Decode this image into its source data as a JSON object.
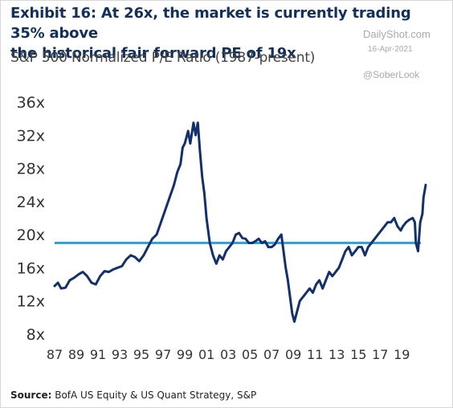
{
  "title_line1": "Exhibit 16: At 26x, the market is currently trading 35% above",
  "title_line2": "the historical fair forward PE of 19x",
  "subtitle": "S&P 500 Normalized P/E Ratio (1987-present)",
  "watermark": {
    "site": "DailyShot.com",
    "date": "16-Apr-2021",
    "handle": "@SoberLook"
  },
  "source_label": "Source:",
  "source_text": "BofA US Equity & US  Quant Strategy, S&P",
  "chart_data": {
    "type": "line",
    "title": "",
    "xlabel": "",
    "ylabel": "",
    "ylim": [
      8,
      36
    ],
    "xlim": [
      1987,
      2021.2
    ],
    "grid": false,
    "y_ticks": [
      8,
      12,
      16,
      20,
      24,
      28,
      32,
      36
    ],
    "y_tick_labels": [
      "8x",
      "12x",
      "16x",
      "20x",
      "24x",
      "28x",
      "32x",
      "36x"
    ],
    "x_ticks": [
      1987,
      1989,
      1991,
      1993,
      1995,
      1997,
      1999,
      2001,
      2003,
      2005,
      2007,
      2009,
      2011,
      2013,
      2015,
      2017,
      2019
    ],
    "x_tick_labels": [
      "87",
      "89",
      "91",
      "93",
      "95",
      "97",
      "99",
      "01",
      "03",
      "05",
      "07",
      "09",
      "11",
      "13",
      "15",
      "17",
      "19"
    ],
    "colors": {
      "pe_line": "#14306b",
      "fair_value_line": "#2aa5e0"
    },
    "reference_line": {
      "y": 19
    },
    "series": [
      {
        "x": [
          1987.0,
          1987.3,
          1987.6,
          1988.0,
          1988.4,
          1988.8,
          1989.2,
          1989.6,
          1990.0,
          1990.4,
          1990.8,
          1991.2,
          1991.6,
          1992.0,
          1992.4,
          1992.8,
          1993.2,
          1993.6,
          1994.0,
          1994.4,
          1994.8,
          1995.2,
          1995.6,
          1996.0,
          1996.4,
          1996.8,
          1997.2,
          1997.6,
          1998.0,
          1998.3,
          1998.6,
          1998.8,
          1999.0,
          1999.3,
          1999.5,
          1999.8,
          2000.0,
          2000.2,
          2000.4,
          2000.6,
          2000.8,
          2001.0,
          2001.3,
          2001.6,
          2001.9,
          2002.2,
          2002.5,
          2002.8,
          2003.1,
          2003.4,
          2003.7,
          2004.0,
          2004.3,
          2004.6,
          2004.9,
          2005.2,
          2005.5,
          2005.8,
          2006.1,
          2006.4,
          2006.7,
          2007.0,
          2007.3,
          2007.6,
          2007.9,
          2008.1,
          2008.3,
          2008.5,
          2008.7,
          2008.9,
          2009.1,
          2009.3,
          2009.6,
          2009.9,
          2010.2,
          2010.5,
          2010.8,
          2011.1,
          2011.4,
          2011.7,
          2012.0,
          2012.3,
          2012.6,
          2012.9,
          2013.2,
          2013.5,
          2013.8,
          2014.1,
          2014.4,
          2014.7,
          2015.0,
          2015.3,
          2015.6,
          2015.9,
          2016.2,
          2016.5,
          2016.8,
          2017.1,
          2017.4,
          2017.7,
          2018.0,
          2018.3,
          2018.6,
          2018.9,
          2019.1,
          2019.4,
          2019.7,
          2020.0,
          2020.2,
          2020.3,
          2020.5,
          2020.7,
          2020.9,
          2021.0,
          2021.2
        ],
        "values": [
          13.8,
          14.2,
          13.5,
          13.6,
          14.5,
          14.8,
          15.2,
          15.5,
          15.0,
          14.2,
          14.0,
          15.0,
          15.6,
          15.5,
          15.8,
          16.0,
          16.2,
          17.0,
          17.5,
          17.3,
          16.8,
          17.5,
          18.5,
          19.5,
          20.0,
          21.5,
          23.0,
          24.5,
          26.0,
          27.5,
          28.5,
          30.5,
          31.0,
          32.5,
          31.0,
          33.5,
          32.0,
          33.5,
          30.0,
          27.0,
          25.0,
          22.0,
          19.0,
          17.5,
          16.5,
          17.5,
          17.0,
          18.0,
          18.5,
          19.0,
          20.0,
          20.2,
          19.6,
          19.5,
          19.0,
          19.0,
          19.2,
          19.5,
          19.0,
          19.2,
          18.5,
          18.5,
          18.8,
          19.5,
          20.0,
          18.0,
          16.0,
          14.5,
          12.5,
          10.5,
          9.5,
          10.5,
          12.0,
          12.5,
          13.0,
          13.5,
          13.0,
          14.0,
          14.5,
          13.5,
          14.5,
          15.5,
          15.0,
          15.5,
          16.0,
          17.0,
          18.0,
          18.5,
          17.5,
          18.0,
          18.5,
          18.5,
          17.5,
          18.5,
          19.0,
          19.5,
          20.0,
          20.5,
          21.0,
          21.5,
          21.5,
          22.0,
          21.0,
          20.5,
          21.0,
          21.5,
          21.8,
          22.0,
          21.5,
          19.0,
          18.0,
          21.5,
          22.5,
          24.5,
          26.0
        ]
      }
    ]
  }
}
